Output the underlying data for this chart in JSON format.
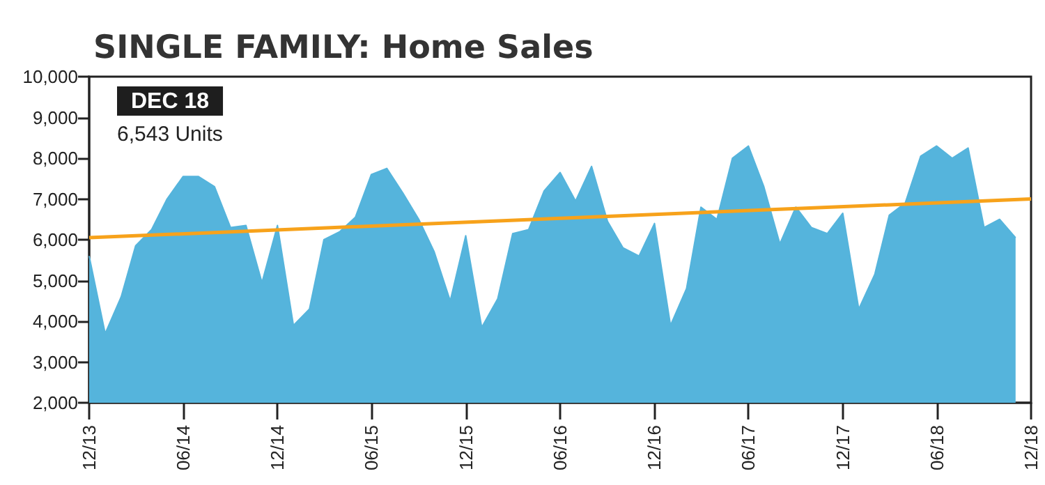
{
  "chart_data": {
    "type": "area",
    "title": "SINGLE FAMILY: Home Sales",
    "annotations": [
      "DEC 18",
      "6,543 Units"
    ],
    "x": [
      "2013-12",
      "2014-01",
      "2014-02",
      "2014-03",
      "2014-04",
      "2014-05",
      "2014-06",
      "2014-07",
      "2014-08",
      "2014-09",
      "2014-10",
      "2014-11",
      "2014-12",
      "2015-01",
      "2015-02",
      "2015-03",
      "2015-04",
      "2015-05",
      "2015-06",
      "2015-07",
      "2015-08",
      "2015-09",
      "2015-10",
      "2015-11",
      "2015-12",
      "2016-01",
      "2016-02",
      "2016-03",
      "2016-04",
      "2016-05",
      "2016-06",
      "2016-07",
      "2016-08",
      "2016-09",
      "2016-10",
      "2016-11",
      "2016-12",
      "2017-01",
      "2017-02",
      "2017-03",
      "2017-04",
      "2017-05",
      "2017-06",
      "2017-07",
      "2017-08",
      "2017-09",
      "2017-10",
      "2017-11",
      "2017-12",
      "2018-01",
      "2018-02",
      "2018-03",
      "2018-04",
      "2018-05",
      "2018-06",
      "2018-07",
      "2018-08",
      "2018-09",
      "2018-10",
      "2018-11"
    ],
    "series": [
      {
        "color": "#55b4dc",
        "values": [
          5600,
          3700,
          4600,
          5850,
          6250,
          7000,
          7550,
          7550,
          7300,
          6300,
          6350,
          4950,
          6350,
          3900,
          4300,
          6000,
          6200,
          6550,
          7600,
          7750,
          7150,
          6500,
          5700,
          4500,
          6100,
          3850,
          4550,
          6150,
          6250,
          7200,
          7650,
          6950,
          7800,
          6450,
          5800,
          5600,
          6400,
          3900,
          4800,
          6800,
          6500,
          8000,
          8300,
          7300,
          5900,
          6800,
          6300,
          6150,
          6650,
          4300,
          5150,
          6600,
          6900,
          8050,
          8300,
          8000,
          8250,
          6300,
          6500,
          6050
        ]
      },
      {
        "type": "line",
        "color": "#f7a21b",
        "x": [
          "2013-12",
          "2018-12"
        ],
        "values": [
          6050,
          7000
        ]
      }
    ],
    "xlim": [
      "2013-12",
      "2018-12"
    ],
    "xticks": [
      {
        "value": "2013-12",
        "label": "12/13"
      },
      {
        "value": "2014-06",
        "label": "06/14"
      },
      {
        "value": "2014-12",
        "label": "12/14"
      },
      {
        "value": "2015-06",
        "label": "06/15"
      },
      {
        "value": "2015-12",
        "label": "12/15"
      },
      {
        "value": "2016-06",
        "label": "06/16"
      },
      {
        "value": "2016-12",
        "label": "12/16"
      },
      {
        "value": "2017-06",
        "label": "06/17"
      },
      {
        "value": "2017-12",
        "label": "12/17"
      },
      {
        "value": "2018-06",
        "label": "06/18"
      },
      {
        "value": "2018-12",
        "label": "12/18"
      }
    ],
    "ylim": [
      2000,
      10000
    ],
    "yticks": [
      {
        "value": 2000,
        "label": "2,000"
      },
      {
        "value": 3000,
        "label": "3,000"
      },
      {
        "value": 4000,
        "label": "4,000"
      },
      {
        "value": 5000,
        "label": "5,000"
      },
      {
        "value": 6000,
        "label": "6,000"
      },
      {
        "value": 7000,
        "label": "7,000"
      },
      {
        "value": 8000,
        "label": "8,000"
      },
      {
        "value": 9000,
        "label": "9,000"
      },
      {
        "value": 10000,
        "label": "10,000"
      }
    ],
    "grid": false,
    "marker": "none",
    "line_style": "solid"
  }
}
